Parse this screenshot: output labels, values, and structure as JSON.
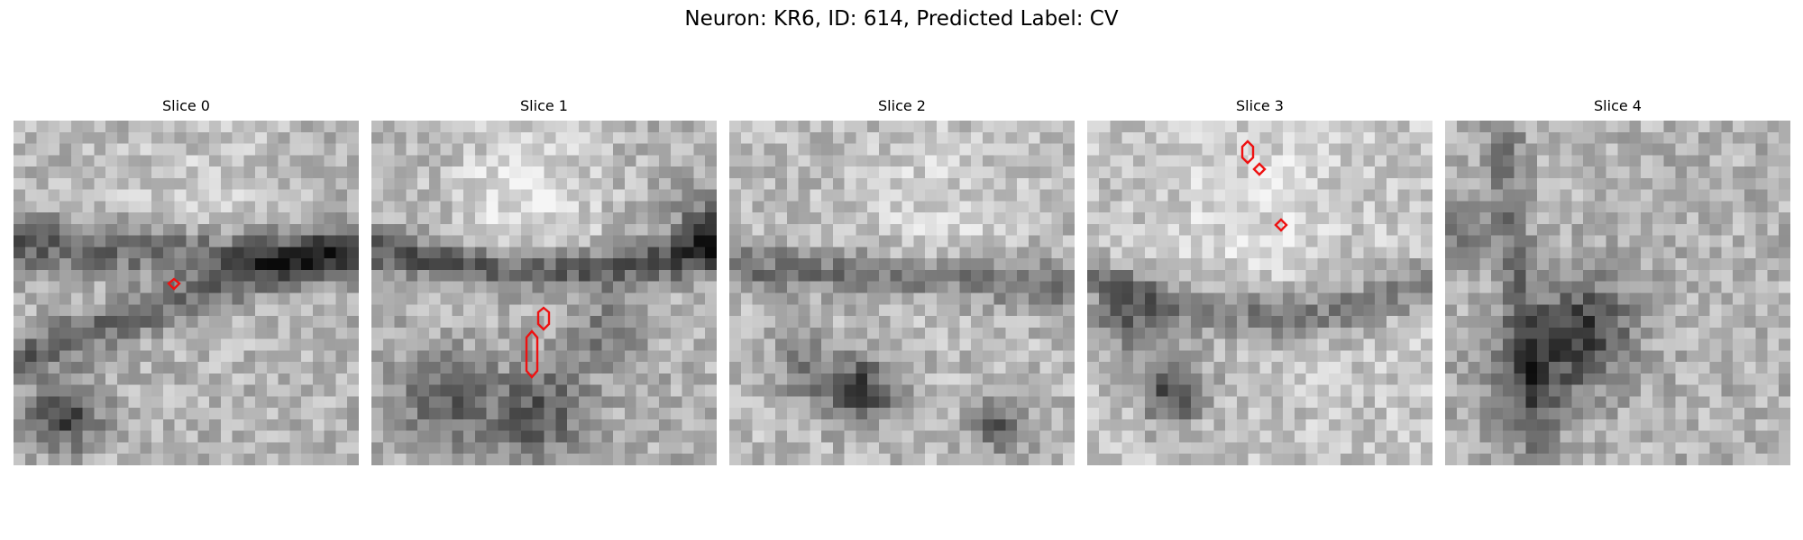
{
  "figure": {
    "title": "Neuron: KR6, ID: 614, Predicted Label: CV"
  },
  "panels": [
    {
      "title": "Slice 0"
    },
    {
      "title": "Slice 1"
    },
    {
      "title": "Slice 2"
    },
    {
      "title": "Slice 3"
    },
    {
      "title": "Slice 4"
    }
  ],
  "colors": {
    "roi_outline": "#ee1111",
    "colormap": "grayscale"
  }
}
